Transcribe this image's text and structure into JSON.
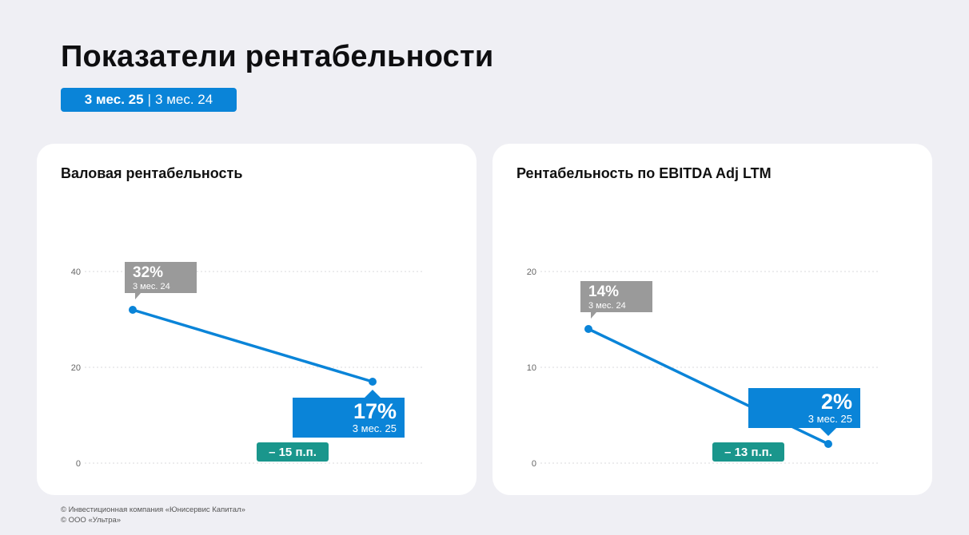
{
  "page": {
    "title": "Показатели рентабельности",
    "period": {
      "current": "3 мес. 25",
      "separator": "|",
      "previous": "3 мес. 24"
    }
  },
  "colors": {
    "accent": "#0a84d8",
    "prev_label": "#9a9a9a",
    "delta": "#1a968c",
    "grid": "#d8d8dc"
  },
  "chart_data": [
    {
      "type": "line",
      "title": "Валовая рентабельность",
      "x": [
        "3 мес. 24",
        "3 мес. 25"
      ],
      "series": [
        {
          "values": [
            32,
            17
          ]
        }
      ],
      "ylim": [
        0,
        40
      ],
      "yticks": [
        0,
        20,
        40
      ],
      "grid": true,
      "labels": [
        {
          "value": "32%",
          "period": "3 мес. 24"
        },
        {
          "value": "17%",
          "period": "3 мес. 25"
        }
      ],
      "delta": "– 15 п.п."
    },
    {
      "type": "line",
      "title": "Рентабельность по EBITDA Adj LTM",
      "x": [
        "3 мес. 24",
        "3 мес. 25"
      ],
      "series": [
        {
          "values": [
            14,
            2
          ]
        }
      ],
      "ylim": [
        0,
        20
      ],
      "yticks": [
        0,
        10,
        20
      ],
      "grid": true,
      "labels": [
        {
          "value": "14%",
          "period": "3 мес. 24"
        },
        {
          "value": "2%",
          "period": "3 мес. 25"
        }
      ],
      "delta": "– 13 п.п."
    }
  ],
  "footer": {
    "line1": "© Инвестиционная компания «Юнисервис Капитал»",
    "line2": "© ООО «Ультра»"
  }
}
